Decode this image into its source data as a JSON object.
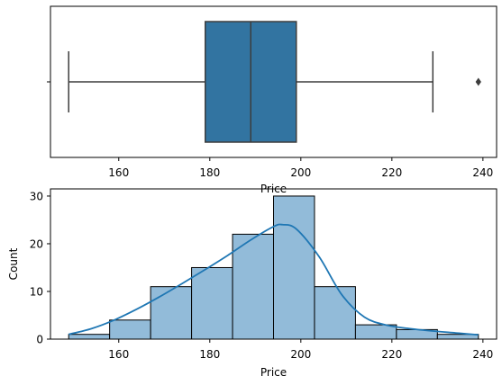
{
  "chart_data": [
    {
      "type": "box",
      "xlabel": "Price",
      "xlim": [
        145,
        243
      ],
      "xticks": [
        160,
        180,
        200,
        220,
        240
      ],
      "xtick_labels": [
        "160",
        "180",
        "200",
        "220",
        "240"
      ],
      "box": {
        "whisker_low": 149,
        "q1": 179,
        "median": 189,
        "q3": 199,
        "whisker_high": 229,
        "outliers": [
          239
        ]
      },
      "color": "#3274a1",
      "grid": false
    },
    {
      "type": "histogram",
      "xlabel": "Price",
      "ylabel": "Count",
      "xlim": [
        145,
        243
      ],
      "ylim": [
        0,
        31.5
      ],
      "xticks": [
        160,
        180,
        200,
        220,
        240
      ],
      "xtick_labels": [
        "160",
        "180",
        "200",
        "220",
        "240"
      ],
      "yticks": [
        0,
        10,
        20,
        30
      ],
      "ytick_labels": [
        "0",
        "10",
        "20",
        "30"
      ],
      "bins": [
        149,
        158,
        167,
        176,
        185,
        194,
        203,
        212,
        221,
        230,
        239
      ],
      "counts": [
        1,
        4,
        11,
        15,
        22,
        30,
        11,
        3,
        2,
        1
      ],
      "kde": {
        "x": [
          149,
          154,
          159,
          164,
          169,
          174,
          179,
          184,
          189,
          194,
          196,
          199,
          204,
          209,
          214,
          219,
          224,
          229,
          234,
          239
        ],
        "y": [
          1.0,
          2.2,
          4.0,
          6.3,
          8.9,
          11.7,
          14.6,
          17.6,
          20.8,
          23.6,
          24.0,
          23.1,
          17.3,
          9.3,
          4.6,
          2.9,
          2.2,
          1.7,
          1.3,
          0.9
        ]
      },
      "bar_color": "#92bbd9",
      "line_color": "#1f77b4",
      "grid": false
    }
  ]
}
